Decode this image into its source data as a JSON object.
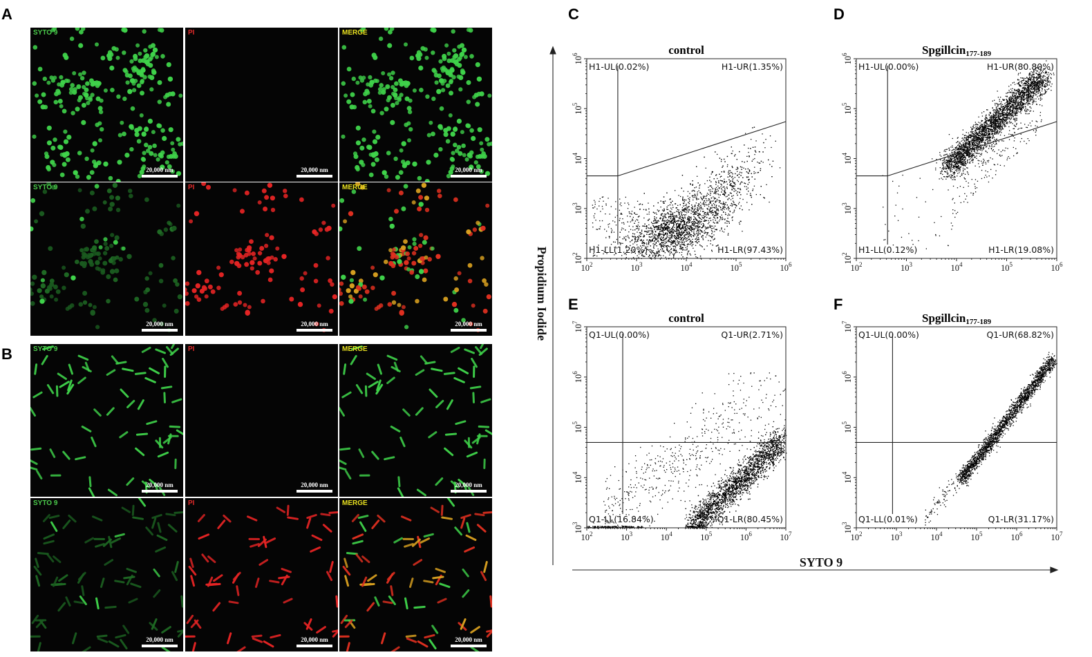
{
  "figure": {
    "panel_letters": [
      "A",
      "B",
      "C",
      "D",
      "E",
      "F"
    ],
    "microscopy": {
      "scale_bar_text": "20,000 nm",
      "channel_labels": [
        "SYTO 9",
        "PI",
        "MERGE"
      ],
      "channel_colors": {
        "SYTO 9": "#4ccc4c",
        "PI": "#e02a2a",
        "MERGE": "#e8e020"
      },
      "panels": [
        {
          "letter": "A",
          "rows": [
            {
              "treatment": "control",
              "cell_shape": "cocci",
              "green": "high",
              "red": "none"
            },
            {
              "treatment": "treated",
              "cell_shape": "cocci",
              "green": "low",
              "red": "high"
            }
          ]
        },
        {
          "letter": "B",
          "rows": [
            {
              "treatment": "control",
              "cell_shape": "rods",
              "green": "high",
              "red": "none"
            },
            {
              "treatment": "treated",
              "cell_shape": "rods",
              "green": "low",
              "red": "high"
            }
          ]
        }
      ]
    },
    "y_axis_title": "Propidium Iodide",
    "x_axis_title": "SYTO 9"
  },
  "chart_data": [
    {
      "panel": "C",
      "type": "scatter",
      "title": "control",
      "title_subscript": "",
      "x_scale": "log",
      "y_scale": "log",
      "xlim": [
        100,
        1000000
      ],
      "ylim": [
        100,
        1000000
      ],
      "x_ticks": [
        "10^2",
        "10^3",
        "10^4",
        "10^5",
        "10^6"
      ],
      "y_ticks": [
        "10^2",
        "10^3",
        "10^4",
        "10^5",
        "10^6"
      ],
      "gate": {
        "vertical_x": 420,
        "horizontal_y": 4500,
        "diagonal_to": [
          1000000,
          55000
        ]
      },
      "quadrants": {
        "UL": "H1-UL(0.02%)",
        "UR": "H1-UR(1.35%)",
        "LL": "H1-LL(1.20%)",
        "LR": "H1-LR(97.43%)"
      },
      "percentages": {
        "UL": 0.02,
        "UR": 1.35,
        "LL": 1.2,
        "LR": 97.43
      }
    },
    {
      "panel": "D",
      "type": "scatter",
      "title": "Spgillcin",
      "title_subscript": "177-189",
      "x_scale": "log",
      "y_scale": "log",
      "xlim": [
        100,
        1000000
      ],
      "ylim": [
        100,
        1000000
      ],
      "x_ticks": [
        "10^2",
        "10^3",
        "10^4",
        "10^5",
        "10^6"
      ],
      "y_ticks": [
        "10^2",
        "10^3",
        "10^4",
        "10^5",
        "10^6"
      ],
      "gate": {
        "vertical_x": 420,
        "horizontal_y": 4500,
        "diagonal_to": [
          1000000,
          55000
        ]
      },
      "quadrants": {
        "UL": "H1-UL(0.00%)",
        "UR": "H1-UR(80.80%)",
        "LL": "H1-LL(0.12%)",
        "LR": "H1-LR(19.08%)"
      },
      "percentages": {
        "UL": 0.0,
        "UR": 80.8,
        "LL": 0.12,
        "LR": 19.08
      }
    },
    {
      "panel": "E",
      "type": "scatter",
      "title": "control",
      "title_subscript": "",
      "x_scale": "log",
      "y_scale": "log",
      "xlim": [
        100,
        10000000
      ],
      "ylim": [
        1000,
        10000000
      ],
      "x_ticks": [
        "10^2",
        "10^3",
        "10^4",
        "10^5",
        "10^6",
        "10^7"
      ],
      "y_ticks": [
        "10^3",
        "10^4",
        "10^5",
        "10^6",
        "10^7"
      ],
      "gate": {
        "vertical_x": 800,
        "horizontal_y": 50000
      },
      "quadrants": {
        "UL": "Q1-UL(0.00%)",
        "UR": "Q1-UR(2.71%)",
        "LL": "Q1-LL(16.84%)",
        "LR": "Q1-LR(80.45%)"
      },
      "percentages": {
        "UL": 0.0,
        "UR": 2.71,
        "LL": 16.84,
        "LR": 80.45
      }
    },
    {
      "panel": "F",
      "type": "scatter",
      "title": "Spgillcin",
      "title_subscript": "177-189",
      "x_scale": "log",
      "y_scale": "log",
      "xlim": [
        100,
        10000000
      ],
      "ylim": [
        1000,
        10000000
      ],
      "x_ticks": [
        "10^2",
        "10^3",
        "10^4",
        "10^5",
        "10^6",
        "10^7"
      ],
      "y_ticks": [
        "10^3",
        "10^4",
        "10^5",
        "10^6",
        "10^7"
      ],
      "gate": {
        "vertical_x": 800,
        "horizontal_y": 50000
      },
      "quadrants": {
        "UL": "Q1-UL(0.00%)",
        "UR": "Q1-UR(68.82%)",
        "LL": "Q1-LL(0.01%)",
        "LR": "Q1-LR(31.17%)"
      },
      "percentages": {
        "UL": 0.0,
        "UR": 68.82,
        "LL": 0.01,
        "LR": 31.17
      }
    }
  ]
}
